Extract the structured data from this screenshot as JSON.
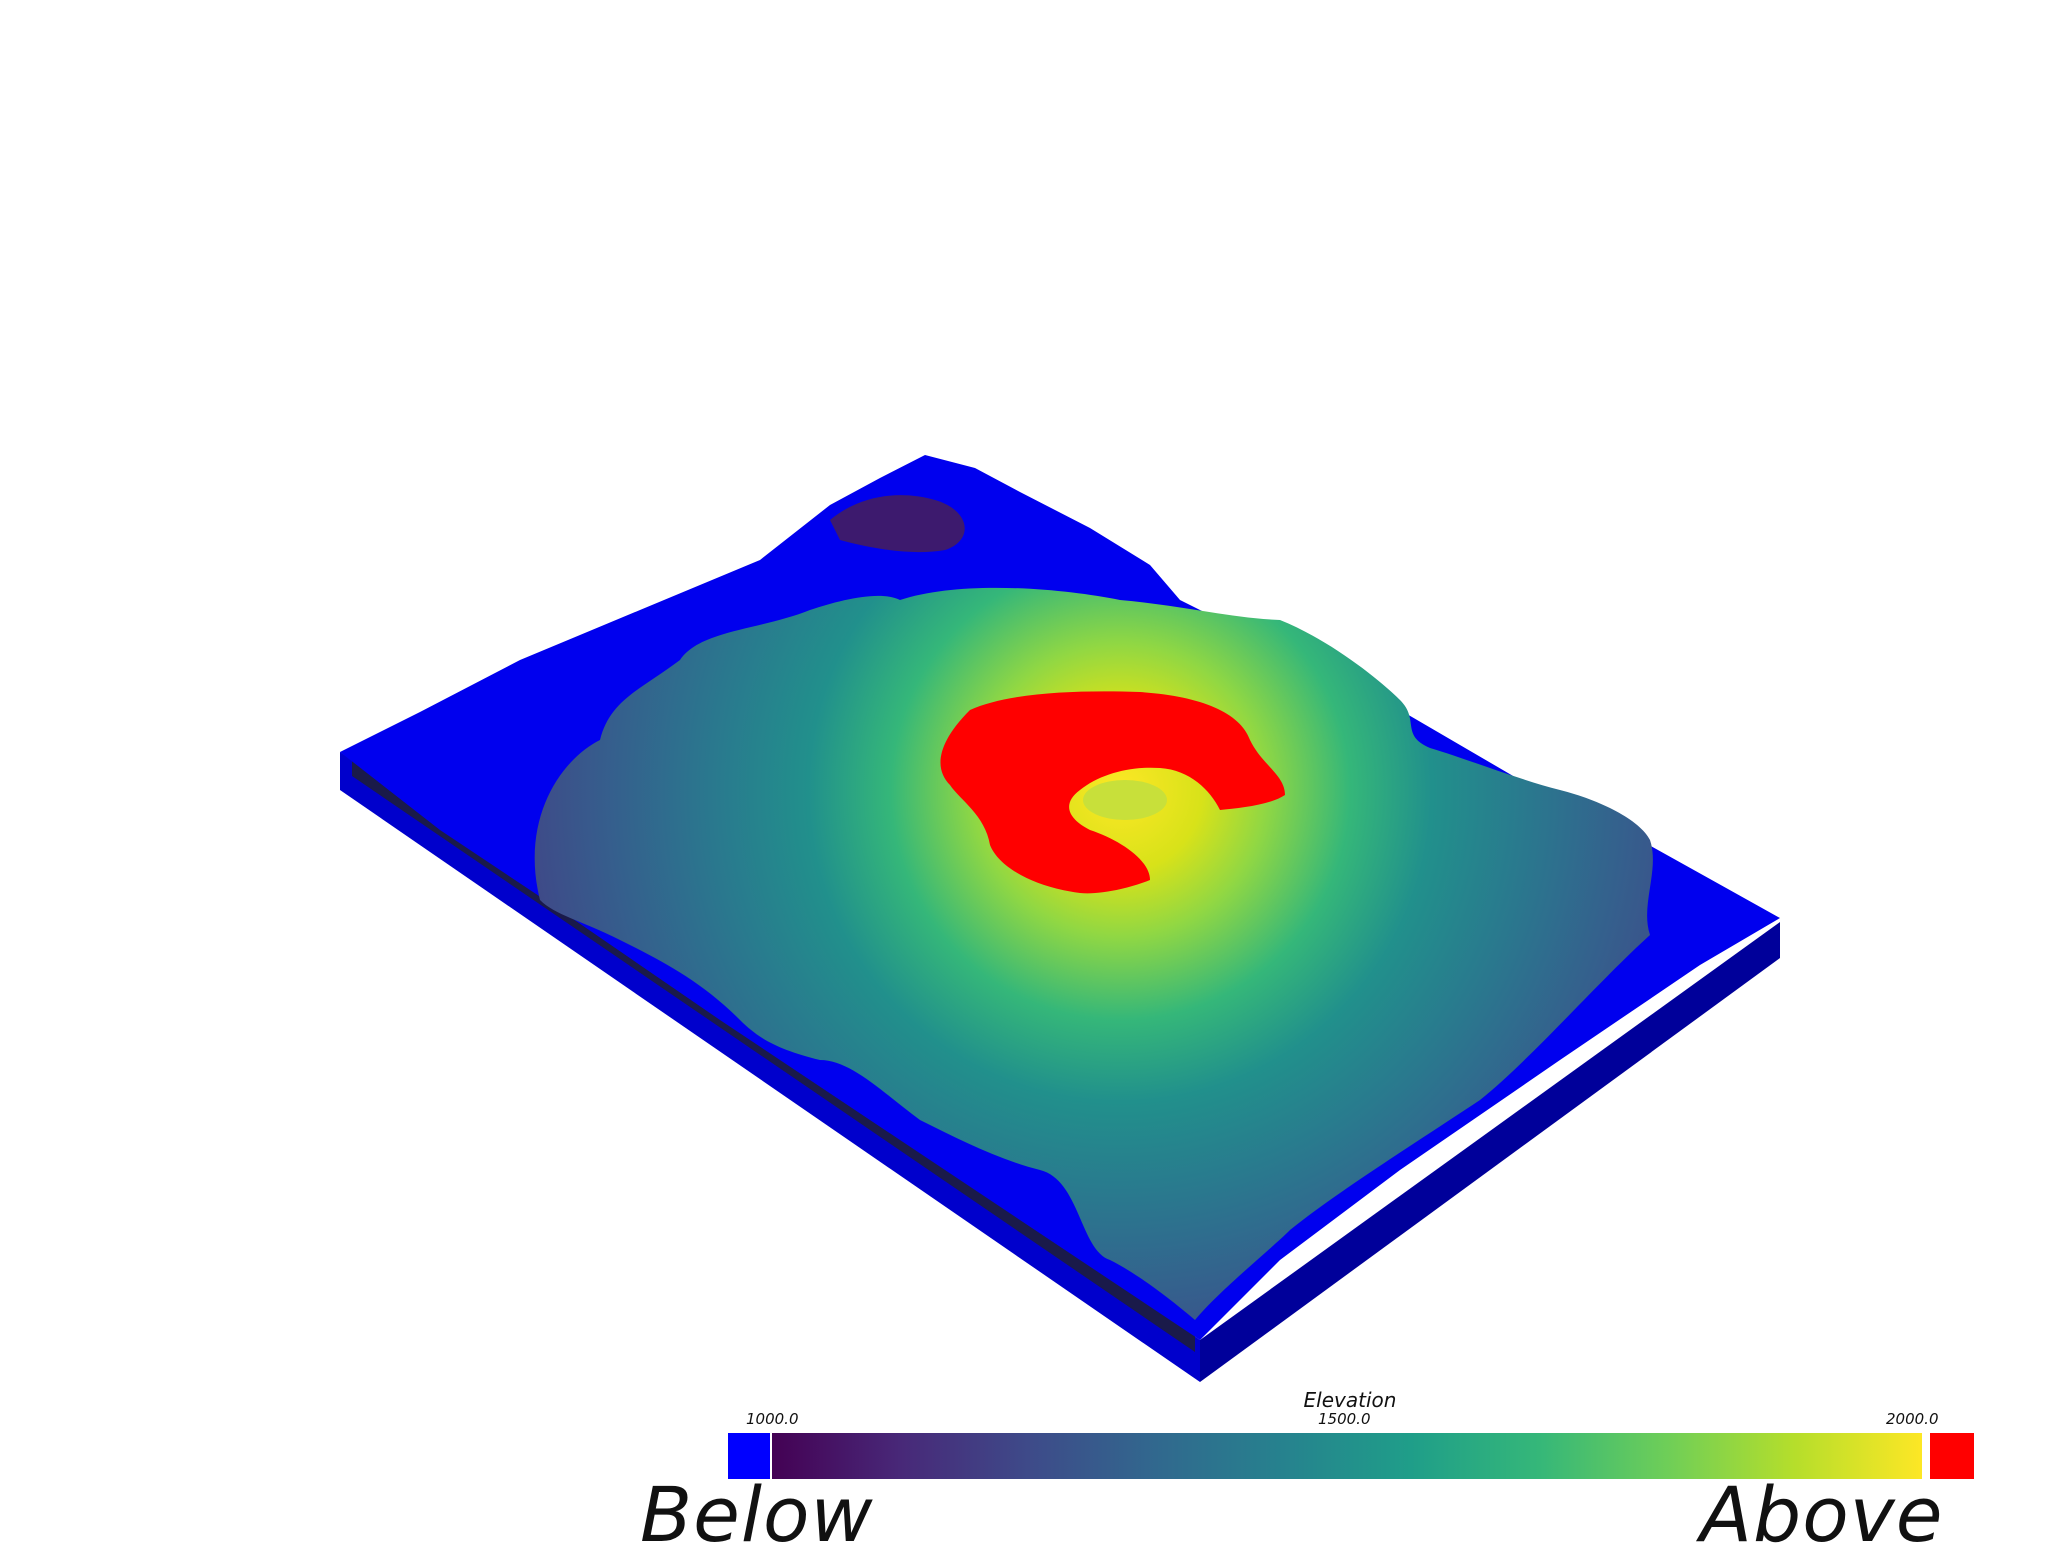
{
  "scalar_bar": {
    "title": "Elevation",
    "min_label": "1000.0",
    "mid_label": "1500.0",
    "max_label": "2000.0",
    "below_label": "Below",
    "above_label": "Above",
    "below_color": "#0000ff",
    "above_color": "#ff0000",
    "colormap": "viridis",
    "colormap_stops": [
      "#440154",
      "#482878",
      "#3e4a89",
      "#31688e",
      "#26828e",
      "#1f9e89",
      "#35b779",
      "#6ece58",
      "#b5de2b",
      "#fde725"
    ]
  }
}
